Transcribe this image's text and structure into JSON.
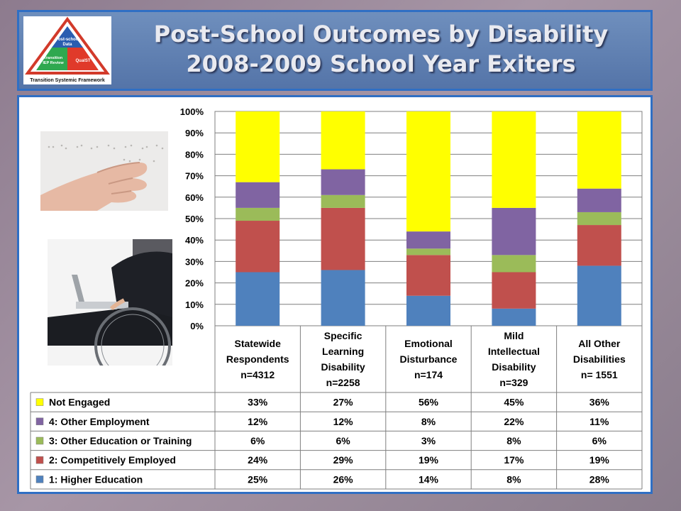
{
  "header": {
    "title_line1": "Post-School Outcomes by Disability",
    "title_line2": "2008-2009 School Year Exiters",
    "logo": {
      "top_piece": "Post-school Data",
      "left_piece": "Transition IEP Review",
      "right_piece": "QualST",
      "caption": "Transition Systemic Framework"
    }
  },
  "colors": {
    "header_bg": "#5b7bb0",
    "frame": "#2f6fc4",
    "not_engaged": "#ffff00",
    "other_employment": "#8064a2",
    "other_education": "#9bbb59",
    "competitively_employed": "#c0504d",
    "higher_education": "#4f81bd"
  },
  "chart_data": {
    "type": "bar",
    "stacked": true,
    "ylim": [
      0,
      100
    ],
    "yticks": [
      "0%",
      "10%",
      "20%",
      "30%",
      "40%",
      "50%",
      "60%",
      "70%",
      "80%",
      "90%",
      "100%"
    ],
    "grid": true,
    "categories": [
      [
        "Statewide",
        "Respondents",
        "n=4312"
      ],
      [
        "Specific",
        "Learning",
        "Disability",
        "n=2258"
      ],
      [
        "Emotional",
        "Disturbance",
        "n=174"
      ],
      [
        "Mild",
        "Intellectual",
        "Disability",
        "n=329"
      ],
      [
        "All Other",
        "Disabilities",
        "n= 1551"
      ]
    ],
    "series": [
      {
        "name": "1: Higher Education",
        "color": "#4f81bd",
        "values": [
          25,
          26,
          14,
          8,
          28
        ],
        "labels": [
          "25%",
          "26%",
          "14%",
          "8%",
          "28%"
        ]
      },
      {
        "name": "2: Competitively Employed",
        "color": "#c0504d",
        "values": [
          24,
          29,
          19,
          17,
          19
        ],
        "labels": [
          "24%",
          "29%",
          "19%",
          "17%",
          "19%"
        ]
      },
      {
        "name": "3: Other Education or Training",
        "color": "#9bbb59",
        "values": [
          6,
          6,
          3,
          8,
          6
        ],
        "labels": [
          "6%",
          "6%",
          "3%",
          "8%",
          "6%"
        ]
      },
      {
        "name": "4: Other Employment",
        "color": "#8064a2",
        "values": [
          12,
          12,
          8,
          22,
          11
        ],
        "labels": [
          "12%",
          "12%",
          "8%",
          "22%",
          "11%"
        ]
      },
      {
        "name": "Not Engaged",
        "color": "#ffff00",
        "values": [
          33,
          27,
          56,
          45,
          36
        ],
        "labels": [
          "33%",
          "27%",
          "56%",
          "45%",
          "36%"
        ]
      }
    ],
    "legend": "data-table-left"
  }
}
